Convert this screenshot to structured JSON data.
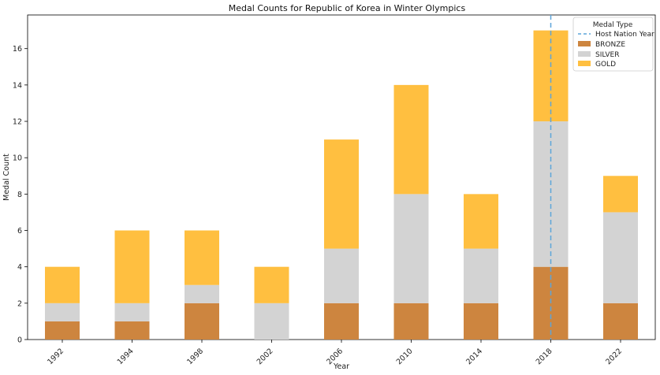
{
  "chart_data": {
    "type": "bar",
    "stacked": true,
    "title": "Medal Counts for Republic of Korea in Winter Olympics",
    "xlabel": "Year",
    "ylabel": "Medal Count",
    "categories": [
      "1992",
      "1994",
      "1998",
      "2002",
      "2006",
      "2010",
      "2014",
      "2018",
      "2022"
    ],
    "series": [
      {
        "name": "BRONZE",
        "color": "#CD853F",
        "values": [
          1,
          1,
          2,
          0,
          2,
          2,
          2,
          4,
          2
        ]
      },
      {
        "name": "SILVER",
        "color": "#D3D3D3",
        "values": [
          1,
          1,
          1,
          2,
          3,
          6,
          3,
          8,
          5
        ]
      },
      {
        "name": "GOLD",
        "color": "#FFBF40",
        "values": [
          2,
          4,
          3,
          2,
          6,
          6,
          3,
          5,
          2
        ]
      }
    ],
    "ylim": [
      0,
      17.85
    ],
    "yticks": [
      0,
      2,
      4,
      6,
      8,
      10,
      12,
      14,
      16
    ],
    "host_line": {
      "label": "Host Nation Year",
      "category": "2018",
      "color": "#5DA5DA",
      "style": "dashed"
    },
    "legend": {
      "title": "Medal Type",
      "placement": "top-right"
    },
    "grid": false
  }
}
